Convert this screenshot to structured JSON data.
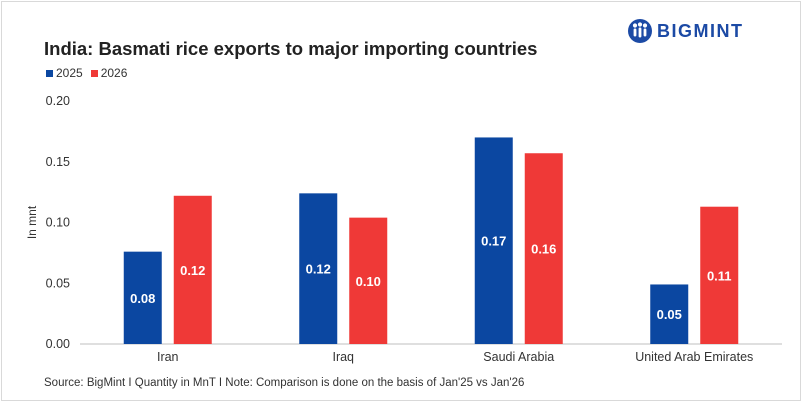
{
  "header": {
    "title": "India: Basmati rice exports to major importing countries",
    "logo_text": "BIGMINT"
  },
  "footer": {
    "source": "Source: BigMint I Quantity in MnT I Note: Comparison is done on the basis of Jan'25 vs Jan'26"
  },
  "chart_data": {
    "type": "bar",
    "title": "India: Basmati rice exports to major importing countries",
    "xlabel": "",
    "ylabel": "In mnt",
    "ylim": [
      0,
      0.2
    ],
    "yticks": [
      "0.00",
      "0.05",
      "0.10",
      "0.15",
      "0.20"
    ],
    "grid": false,
    "legend_position": "top-left",
    "categories": [
      "Iran",
      "Iraq",
      "Saudi Arabia",
      "United Arab Emirates"
    ],
    "series": [
      {
        "name": "2025",
        "color": "#0b47a1",
        "values": [
          0.076,
          0.124,
          0.17,
          0.049
        ],
        "labels": [
          "0.08",
          "0.12",
          "0.17",
          "0.05"
        ]
      },
      {
        "name": "2026",
        "color": "#ef3937",
        "values": [
          0.122,
          0.104,
          0.157,
          0.113
        ],
        "labels": [
          "0.12",
          "0.10",
          "0.16",
          "0.11"
        ]
      }
    ]
  }
}
